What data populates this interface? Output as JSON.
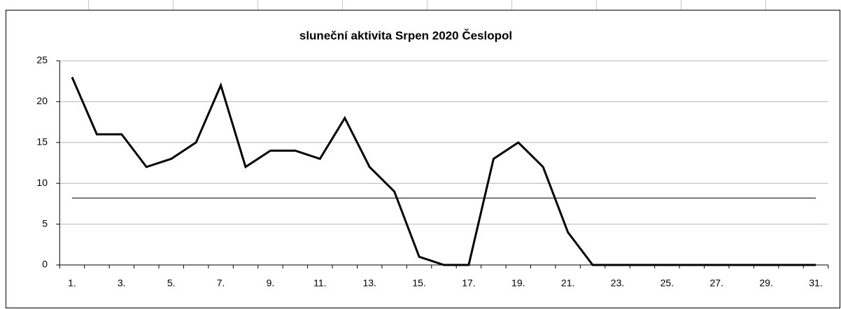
{
  "chart_data": {
    "type": "line",
    "title": "sluneční aktivita  Srpen 2020 Česlopol",
    "categories": [
      "1.",
      null,
      "3.",
      null,
      "5.",
      null,
      "7.",
      null,
      "9.",
      null,
      "11.",
      null,
      "13.",
      null,
      "15.",
      null,
      "17.",
      null,
      "19.",
      null,
      "21.",
      null,
      "23.",
      null,
      "25.",
      null,
      "27.",
      null,
      "29.",
      null,
      "31."
    ],
    "series": [
      {
        "color": "#000000",
        "values": [
          23,
          16,
          16,
          12,
          13,
          15,
          22,
          12,
          14,
          14,
          13,
          18,
          12,
          9,
          1,
          0,
          0,
          13,
          15,
          12,
          4,
          0,
          0,
          0,
          0,
          0,
          0,
          0,
          0,
          0,
          0
        ]
      }
    ],
    "reference_line": 8.2,
    "ylim": [
      0,
      25
    ],
    "yticks": [
      0,
      5,
      10,
      15,
      20,
      25
    ],
    "grid": true
  }
}
